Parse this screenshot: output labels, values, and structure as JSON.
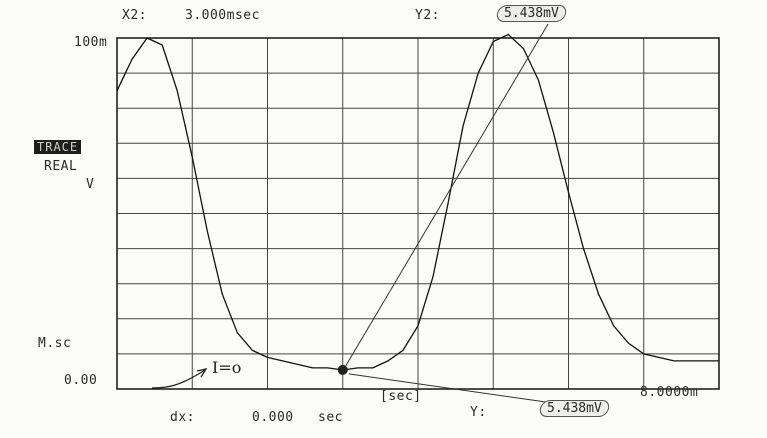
{
  "header": {
    "x2_label": "X2:",
    "x2_value": "3.000msec",
    "y2_label": "Y2:",
    "y2_value": "5.438mV"
  },
  "y_axis": {
    "max_label": "100m",
    "min_label": "0.00",
    "scale_label": "M.sc"
  },
  "trace": {
    "badge": "TRACE",
    "mode": "REAL",
    "unit": "V"
  },
  "x_axis": {
    "max_label": "8.0000m",
    "unit_label": "[sec]"
  },
  "footer": {
    "dx_label": "dx:",
    "dx_value": "0.000",
    "dx_unit": "sec",
    "y_label": "Y:",
    "y_value": "5.438mV"
  },
  "annotation": {
    "handwritten": "I=o"
  },
  "chart_data": {
    "type": "line",
    "xlabel": "[sec]",
    "ylabel": "V",
    "xlim": [
      0,
      0.008
    ],
    "ylim": [
      0,
      0.1
    ],
    "x_ticks": [
      "8.0000m"
    ],
    "y_ticks": [
      "0.00",
      "100m"
    ],
    "grid": true,
    "cursor": {
      "x": 0.003,
      "y": 0.005438
    },
    "series": [
      {
        "x": [
          0,
          0.0002,
          0.0004,
          0.0006,
          0.0008,
          0.001,
          0.0012,
          0.0014,
          0.0016,
          0.0018,
          0.002,
          0.0022,
          0.0024,
          0.0026,
          0.0028,
          0.003,
          0.0032,
          0.0034,
          0.0036,
          0.0038,
          0.004,
          0.0042,
          0.0044,
          0.0046,
          0.0048,
          0.005,
          0.0052,
          0.0054,
          0.0056,
          0.0058,
          0.006,
          0.0062,
          0.0064,
          0.0066,
          0.0068,
          0.007,
          0.0072,
          0.0074,
          0.0076,
          0.0078,
          0.008
        ],
        "y": [
          0.085,
          0.094,
          0.1,
          0.098,
          0.085,
          0.066,
          0.045,
          0.027,
          0.016,
          0.011,
          0.009,
          0.008,
          0.007,
          0.006,
          0.006,
          0.0054,
          0.006,
          0.006,
          0.008,
          0.011,
          0.018,
          0.032,
          0.053,
          0.075,
          0.09,
          0.099,
          0.101,
          0.097,
          0.088,
          0.073,
          0.056,
          0.04,
          0.027,
          0.018,
          0.013,
          0.01,
          0.009,
          0.008,
          0.008,
          0.008,
          0.008
        ]
      }
    ]
  }
}
